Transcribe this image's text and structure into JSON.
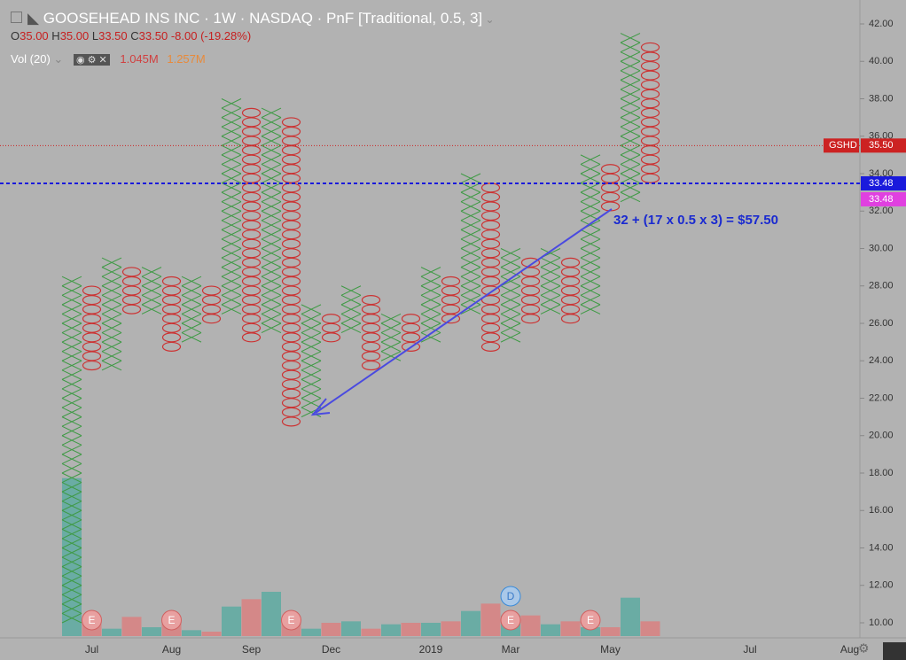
{
  "chart_data": {
    "type": "pnf",
    "title": "GOOSEHEAD INS INC · 1W · NASDAQ · PnF [Traditional, 0.5, 3]",
    "ohlc": {
      "o_label": "O",
      "o": "35.00",
      "h_label": "H",
      "h": "35.00",
      "l_label": "L",
      "l": "33.50",
      "c_label": "C",
      "c": "33.50",
      "change": "-8.00 (-19.28%)"
    },
    "volume_legend": {
      "name": "Vol (20)",
      "value": "1.045M",
      "ma": "1.257M"
    },
    "box_size": 0.5,
    "x_color": "#3f9a45",
    "o_color": "#cc3333",
    "columns": [
      {
        "type": "X",
        "low": 10,
        "high": 28.5
      },
      {
        "type": "O",
        "low": 23.5,
        "high": 28
      },
      {
        "type": "X",
        "low": 23.5,
        "high": 29.5
      },
      {
        "type": "O",
        "low": 26.5,
        "high": 29
      },
      {
        "type": "X",
        "low": 26.5,
        "high": 29
      },
      {
        "type": "O",
        "low": 24.5,
        "high": 28.5
      },
      {
        "type": "X",
        "low": 25,
        "high": 28.5
      },
      {
        "type": "O",
        "low": 26,
        "high": 28
      },
      {
        "type": "X",
        "low": 26.5,
        "high": 38
      },
      {
        "type": "O",
        "low": 25,
        "high": 37.5
      },
      {
        "type": "X",
        "low": 25.5,
        "high": 37.5
      },
      {
        "type": "O",
        "low": 20.5,
        "high": 37
      },
      {
        "type": "X",
        "low": 21,
        "high": 27
      },
      {
        "type": "O",
        "low": 25,
        "high": 26.5
      },
      {
        "type": "X",
        "low": 25.5,
        "high": 28
      },
      {
        "type": "O",
        "low": 23.5,
        "high": 27.5
      },
      {
        "type": "X",
        "low": 24,
        "high": 26.5
      },
      {
        "type": "O",
        "low": 24.5,
        "high": 26.5
      },
      {
        "type": "X",
        "low": 25,
        "high": 29
      },
      {
        "type": "O",
        "low": 26,
        "high": 28.5
      },
      {
        "type": "X",
        "low": 26.5,
        "high": 34
      },
      {
        "type": "O",
        "low": 24.5,
        "high": 33.5
      },
      {
        "type": "X",
        "low": 25,
        "high": 30
      },
      {
        "type": "O",
        "low": 26,
        "high": 29.5
      },
      {
        "type": "X",
        "low": 26.5,
        "high": 30
      },
      {
        "type": "O",
        "low": 26,
        "high": 29.5
      },
      {
        "type": "X",
        "low": 26.5,
        "high": 35
      },
      {
        "type": "O",
        "low": 32,
        "high": 34.5
      },
      {
        "type": "X",
        "low": 32.5,
        "high": 41.5
      },
      {
        "type": "O",
        "low": 33.5,
        "high": 41
      }
    ],
    "volume": [
      10.7,
      1.3,
      0.5,
      1.3,
      0.6,
      1.3,
      0.4,
      0.3,
      2.0,
      2.5,
      3.0,
      1.1,
      0.5,
      0.9,
      1.0,
      0.5,
      0.8,
      0.9,
      0.9,
      1.0,
      1.7,
      2.2,
      1.4,
      1.4,
      0.8,
      1.0,
      0.6,
      0.6,
      2.6,
      1.0
    ],
    "vol_ylim": [
      0,
      12
    ],
    "xaxis_labels": [
      {
        "label": "Jul",
        "column": 1
      },
      {
        "label": "Aug",
        "column": 5
      },
      {
        "label": "Sep",
        "column": 9
      },
      {
        "label": "Dec",
        "column": 13
      },
      {
        "label": "2019",
        "column": 18
      },
      {
        "label": "Mar",
        "column": 22
      },
      {
        "label": "May",
        "column": 27
      },
      {
        "label": "Jul",
        "column": 34
      },
      {
        "label": "Aug",
        "column": 39
      }
    ],
    "events": [
      {
        "label": "E",
        "column": 1
      },
      {
        "label": "E",
        "column": 5
      },
      {
        "label": "E",
        "column": 11
      },
      {
        "label": "E",
        "column": 22
      },
      {
        "label": "E",
        "column": 26
      }
    ],
    "dividend": {
      "label": "D",
      "column": 22
    },
    "ylim": [
      10,
      42
    ],
    "yticks": [
      {
        "value": 10,
        "label": "10.00"
      },
      {
        "value": 12,
        "label": "12.00"
      },
      {
        "value": 14,
        "label": "14.00"
      },
      {
        "value": 16,
        "label": "16.00"
      },
      {
        "value": 18,
        "label": "18.00"
      },
      {
        "value": 20,
        "label": "20.00"
      },
      {
        "value": 22,
        "label": "22.00"
      },
      {
        "value": 24,
        "label": "24.00"
      },
      {
        "value": 26,
        "label": "26.00"
      },
      {
        "value": 28,
        "label": "28.00"
      },
      {
        "value": 30,
        "label": "30.00"
      },
      {
        "value": 32,
        "label": "32.00"
      },
      {
        "value": 34,
        "label": "34.00"
      },
      {
        "value": 36,
        "label": "36.00"
      },
      {
        "value": 38,
        "label": "38.00"
      },
      {
        "value": 40,
        "label": "40.00"
      },
      {
        "value": 42,
        "label": "42.00"
      }
    ],
    "price_lines": [
      {
        "value": 35.5,
        "label": "35.50",
        "name": "GSHD",
        "color": "#cc2222"
      },
      {
        "value": 33.48,
        "label": "33.48",
        "color": "#1a1adc"
      }
    ],
    "pending_label": {
      "value": 33.48,
      "label": "33.48",
      "color": "#e040e0"
    },
    "annotation": "32 + (17 x 0.5 x 3) = $57.50"
  }
}
